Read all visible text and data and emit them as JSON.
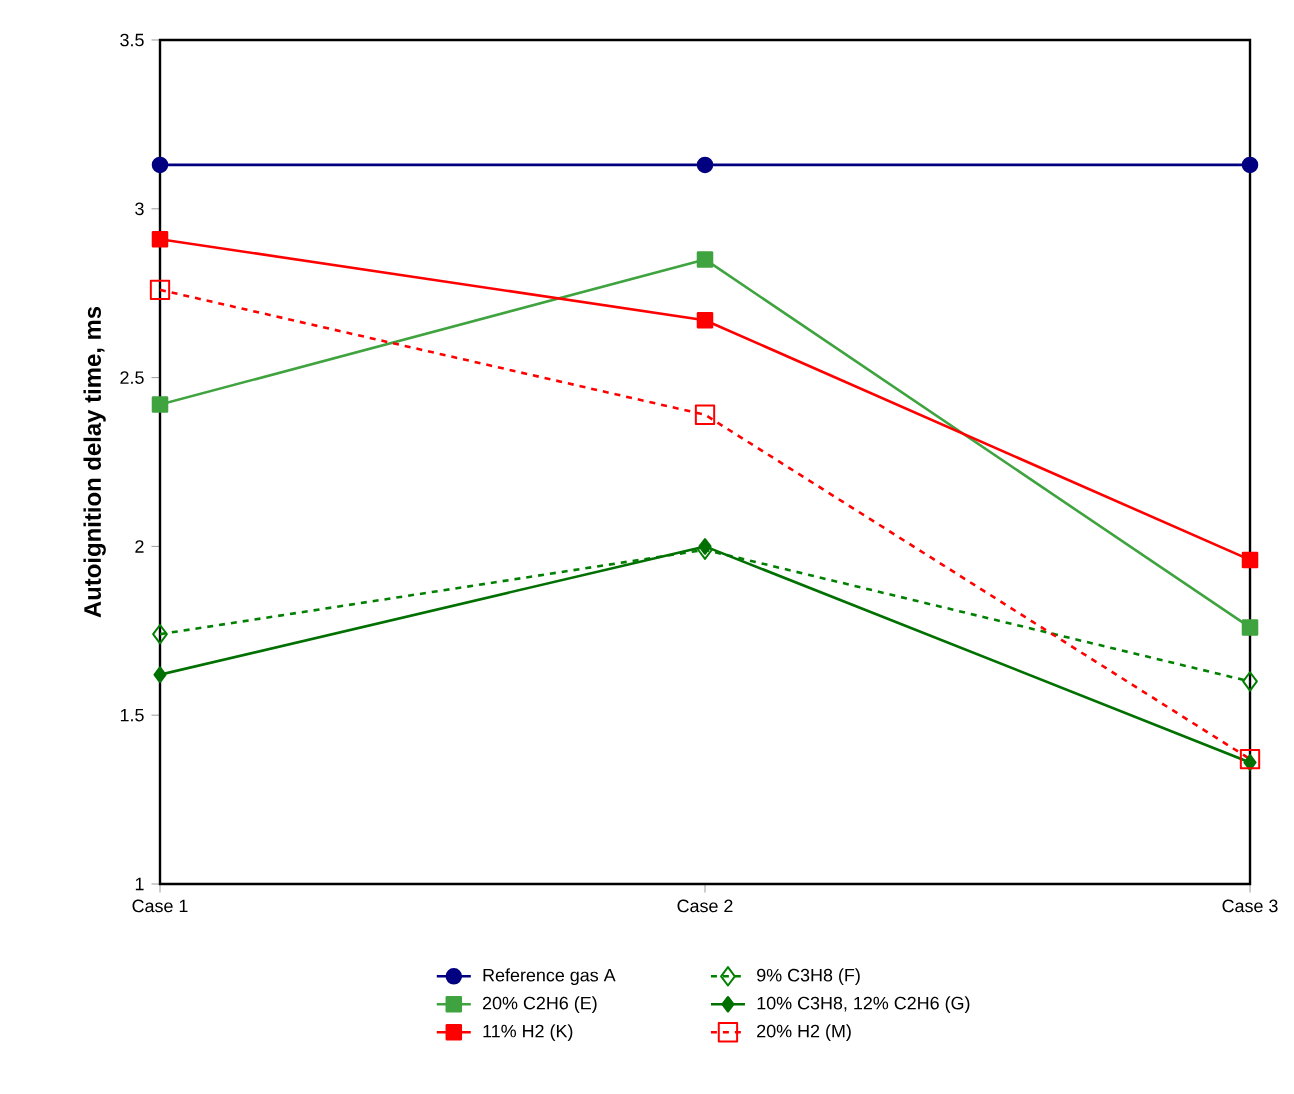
{
  "chart_data": {
    "type": "line",
    "ylabel": "Autoignition delay time, ms",
    "categories": [
      "Case 1",
      "Case 2",
      "Case 3"
    ],
    "ylim": [
      1,
      3.5
    ],
    "yticks": [
      1,
      1.5,
      2,
      2.5,
      3,
      3.5
    ],
    "grid": false,
    "legend": "bottom",
    "series": [
      {
        "name": "Reference gas A",
        "color": "#000080",
        "marker": "circle",
        "line_style": "solid",
        "values": [
          3.13,
          3.13,
          3.13
        ]
      },
      {
        "name": "9% C3H8  (F)",
        "color": "#008000",
        "marker": "diamond",
        "line_style": "dashed",
        "values": [
          1.74,
          1.99,
          1.6
        ]
      },
      {
        "name": "20% C2H6 (E)",
        "color": "#3fa33f",
        "marker": "square",
        "line_style": "solid",
        "values": [
          2.42,
          2.85,
          1.76
        ]
      },
      {
        "name": "10% C3H8, 12% C2H6 (G)",
        "color": "#007000",
        "marker": "diamond",
        "line_style": "solid",
        "values": [
          1.62,
          2.0,
          1.36
        ]
      },
      {
        "name": "11% H2 (K)",
        "color": "#ff0000",
        "marker": "square",
        "line_style": "solid",
        "values": [
          2.91,
          2.67,
          1.96
        ]
      },
      {
        "name": "20% H2 (M)",
        "color": "#ff0000",
        "marker": "square",
        "line_style": "dashed",
        "values": [
          2.76,
          2.39,
          1.37
        ]
      }
    ]
  }
}
